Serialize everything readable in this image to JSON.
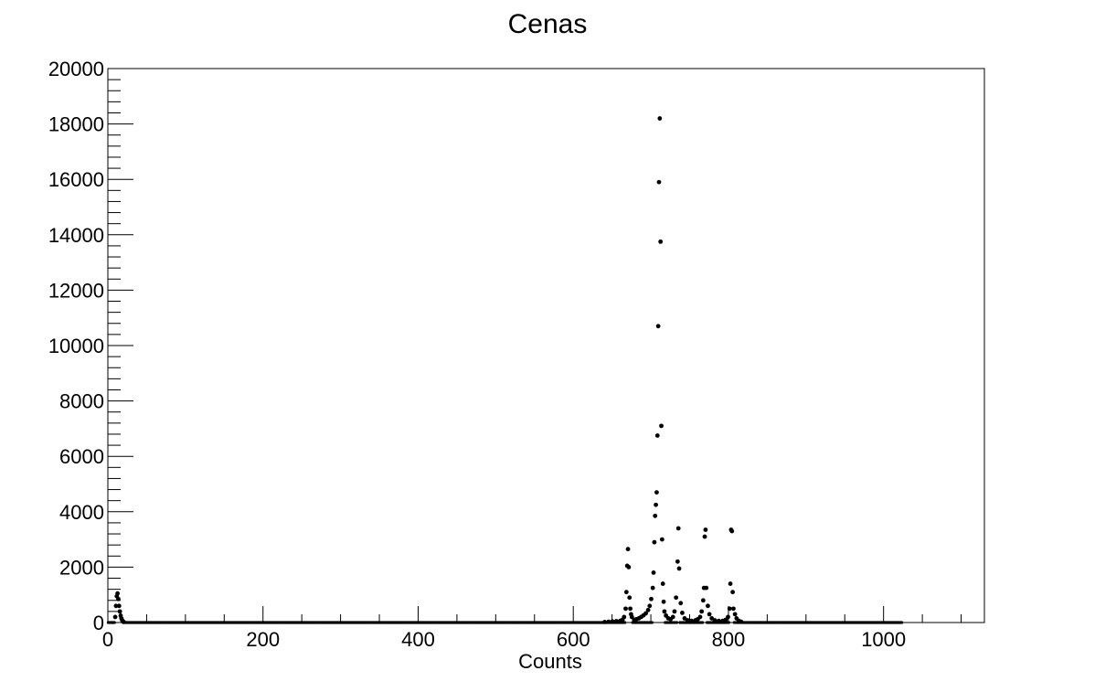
{
  "chart_data": {
    "type": "scatter",
    "title": "Cenas",
    "xlabel": "Counts",
    "ylabel": "",
    "xlim": [
      0,
      1130
    ],
    "ylim": [
      0,
      20000
    ],
    "x_ticks": [
      0,
      200,
      400,
      600,
      800,
      1000
    ],
    "y_ticks": [
      0,
      2000,
      4000,
      6000,
      8000,
      10000,
      12000,
      14000,
      16000,
      18000,
      20000
    ],
    "grid": false,
    "legend": "none",
    "marker_color": "#000000",
    "series": [
      {
        "name": "",
        "points": [
          [
            9,
            200
          ],
          [
            10,
            600
          ],
          [
            11,
            950
          ],
          [
            12,
            1050
          ],
          [
            13,
            850
          ],
          [
            14,
            600
          ],
          [
            15,
            400
          ],
          [
            16,
            250
          ],
          [
            17,
            150
          ],
          [
            18,
            80
          ],
          [
            19,
            40
          ],
          [
            20,
            20
          ],
          [
            640,
            20
          ],
          [
            645,
            30
          ],
          [
            650,
            40
          ],
          [
            655,
            50
          ],
          [
            660,
            60
          ],
          [
            663,
            100
          ],
          [
            665,
            200
          ],
          [
            667,
            500
          ],
          [
            668,
            1100
          ],
          [
            669,
            2050
          ],
          [
            670,
            2650
          ],
          [
            671,
            2000
          ],
          [
            672,
            900
          ],
          [
            673,
            500
          ],
          [
            674,
            300
          ],
          [
            675,
            200
          ],
          [
            678,
            100
          ],
          [
            681,
            120
          ],
          [
            684,
            150
          ],
          [
            687,
            200
          ],
          [
            690,
            260
          ],
          [
            693,
            330
          ],
          [
            696,
            450
          ],
          [
            698,
            600
          ],
          [
            700,
            850
          ],
          [
            702,
            1250
          ],
          [
            703,
            1800
          ],
          [
            704,
            2900
          ],
          [
            705,
            3850
          ],
          [
            706,
            4250
          ],
          [
            707,
            4700
          ],
          [
            708,
            6750
          ],
          [
            709,
            10700
          ],
          [
            710,
            15900
          ],
          [
            711,
            18200
          ],
          [
            712,
            13750
          ],
          [
            713,
            7100
          ],
          [
            714,
            3000
          ],
          [
            715,
            1400
          ],
          [
            716,
            750
          ],
          [
            717,
            400
          ],
          [
            719,
            250
          ],
          [
            722,
            150
          ],
          [
            725,
            120
          ],
          [
            728,
            200
          ],
          [
            730,
            400
          ],
          [
            732,
            900
          ],
          [
            734,
            2200
          ],
          [
            735,
            3400
          ],
          [
            736,
            1950
          ],
          [
            738,
            700
          ],
          [
            740,
            350
          ],
          [
            743,
            150
          ],
          [
            747,
            80
          ],
          [
            752,
            60
          ],
          [
            757,
            80
          ],
          [
            760,
            120
          ],
          [
            763,
            200
          ],
          [
            765,
            400
          ],
          [
            767,
            800
          ],
          [
            768,
            1250
          ],
          [
            769,
            3100
          ],
          [
            770,
            3350
          ],
          [
            771,
            1250
          ],
          [
            773,
            600
          ],
          [
            775,
            300
          ],
          [
            778,
            150
          ],
          [
            782,
            80
          ],
          [
            787,
            60
          ],
          [
            792,
            60
          ],
          [
            796,
            100
          ],
          [
            799,
            200
          ],
          [
            801,
            500
          ],
          [
            802,
            1400
          ],
          [
            803,
            3350
          ],
          [
            804,
            3300
          ],
          [
            805,
            1100
          ],
          [
            806,
            500
          ],
          [
            808,
            300
          ],
          [
            810,
            150
          ],
          [
            813,
            60
          ],
          [
            816,
            30
          ]
        ]
      }
    ]
  }
}
